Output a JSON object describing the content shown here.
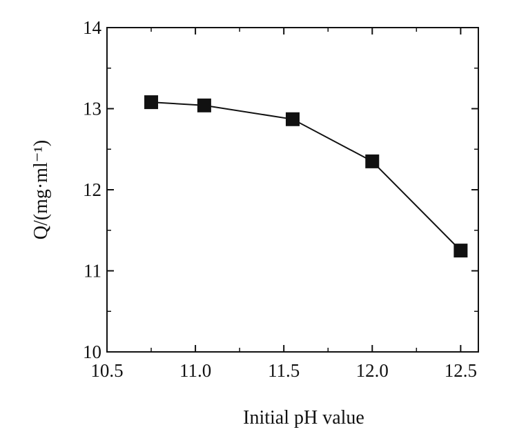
{
  "chart_data": {
    "type": "line",
    "xlabel": "Initial pH value",
    "ylabel": "Q/(mg·ml⁻¹)",
    "xlim": [
      10.5,
      12.6
    ],
    "ylim": [
      10,
      14
    ],
    "x_ticks": [
      10.5,
      11.0,
      11.5,
      12.0,
      12.5
    ],
    "x_tick_labels": [
      "10.5",
      "11.0",
      "11.5",
      "12.0",
      "12.5"
    ],
    "y_ticks": [
      10,
      11,
      12,
      13,
      14
    ],
    "y_tick_labels": [
      "10",
      "11",
      "12",
      "13",
      "14"
    ],
    "grid": false,
    "series": [
      {
        "marker": "square",
        "color": "#111111",
        "x": [
          10.75,
          11.05,
          11.55,
          12.0,
          12.5
        ],
        "y": [
          13.08,
          13.04,
          12.87,
          12.35,
          11.25
        ]
      }
    ]
  }
}
